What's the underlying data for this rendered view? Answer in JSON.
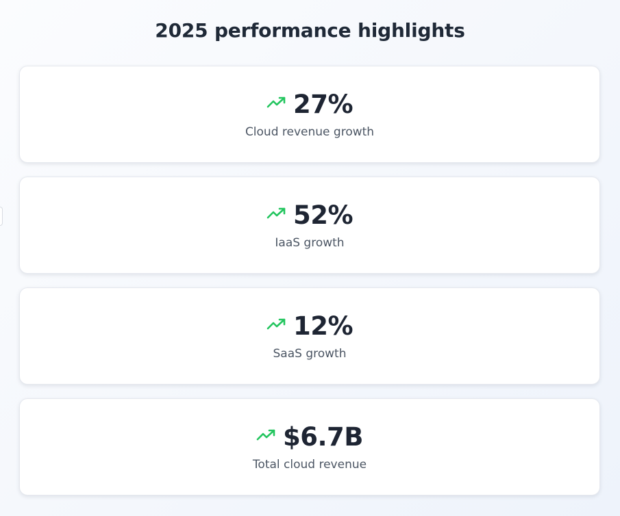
{
  "page": {
    "title": "2025 performance highlights"
  },
  "colors": {
    "trend_up": "#22c55e",
    "value_text": "#1e2533",
    "label_text": "#4b5563"
  },
  "cards": [
    {
      "icon": "trend-up-icon",
      "value": "27%",
      "label": "Cloud revenue growth"
    },
    {
      "icon": "trend-up-icon",
      "value": "52%",
      "label": "IaaS growth"
    },
    {
      "icon": "trend-up-icon",
      "value": "12%",
      "label": "SaaS growth"
    },
    {
      "icon": "trend-up-icon",
      "value": "$6.7B",
      "label": "Total cloud revenue"
    }
  ]
}
